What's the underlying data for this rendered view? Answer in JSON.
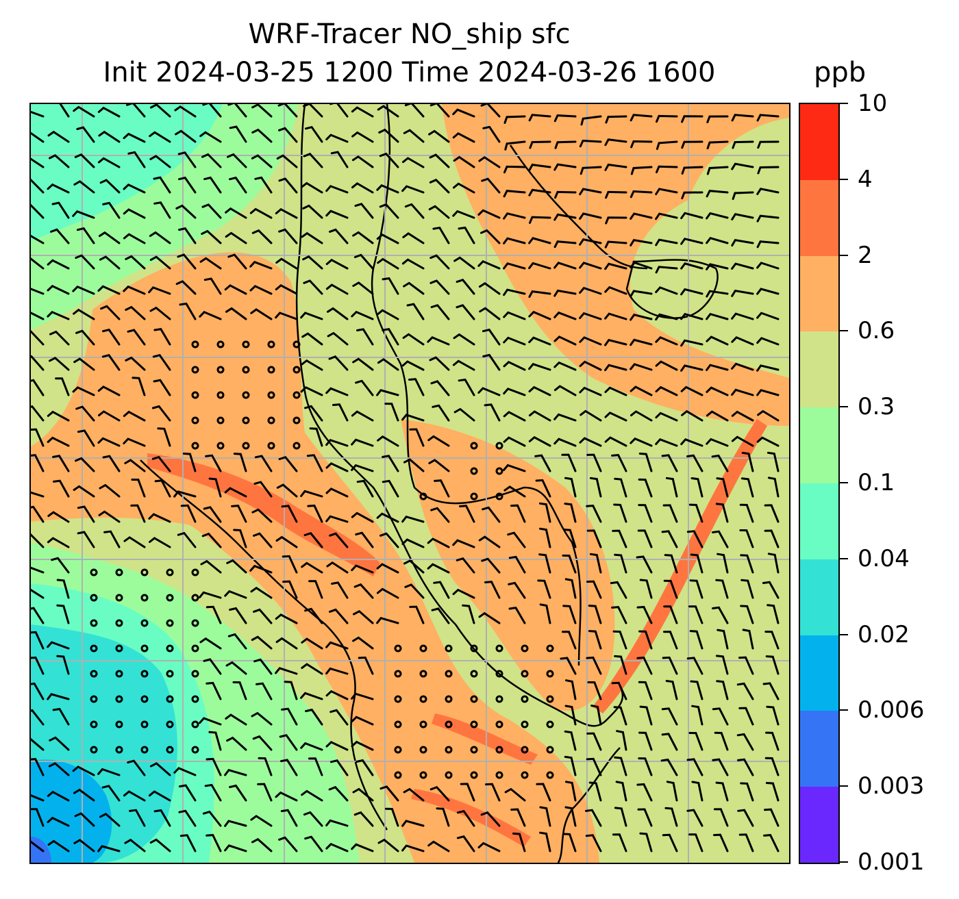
{
  "title": {
    "line1": "WRF-Tracer NO_ship sfc",
    "line2": "Init 2024-03-25 1200 Time 2024-03-26 1600",
    "units": "ppb"
  },
  "colorbar": {
    "levels": [
      "0.001",
      "0.003",
      "0.006",
      "0.02",
      "0.04",
      "0.1",
      "0.3",
      "0.6",
      "2",
      "4",
      "10"
    ],
    "colors": [
      "#6a28ff",
      "#3574f5",
      "#03b2ec",
      "#33e2d5",
      "#6afdc3",
      "#9cfc9c",
      "#d0e388",
      "#ffb062",
      "#ff7540",
      "#ff2a14"
    ]
  }
}
